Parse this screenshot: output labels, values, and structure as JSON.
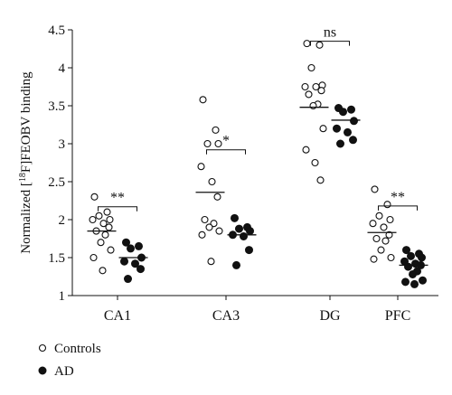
{
  "chart_data": {
    "type": "scatter",
    "ylabel": "Normalized [<sup>18</sup>F]FEOBV binding",
    "ylabel_parts": {
      "prefix": "Normalized [",
      "sup": "18",
      "suffix": "F]FEOBV binding"
    },
    "ylim": [
      1,
      4.5
    ],
    "yticks": [
      "1",
      "1.5",
      "2",
      "2.5",
      "3",
      "3.5",
      "4",
      "4.5"
    ],
    "ytick_values": [
      1,
      1.5,
      2,
      2.5,
      3,
      3.5,
      4,
      4.5
    ],
    "categories": [
      "CA1",
      "CA3",
      "DG",
      "PFC"
    ],
    "legend_placement": "bottom-left",
    "series": [
      {
        "name": "Controls",
        "marker": "open-circle",
        "values": [
          [
            2.3,
            2.1,
            2.05,
            2.0,
            2.0,
            1.95,
            1.9,
            1.85,
            1.8,
            1.7,
            1.6,
            1.5,
            1.33
          ],
          [
            3.58,
            3.18,
            3.0,
            3.0,
            2.7,
            2.5,
            2.3,
            2.0,
            1.95,
            1.9,
            1.85,
            1.8,
            1.45
          ],
          [
            4.32,
            4.3,
            4.0,
            3.77,
            3.75,
            3.75,
            3.7,
            3.65,
            3.52,
            3.5,
            3.2,
            2.92,
            2.75,
            2.52
          ],
          [
            2.4,
            2.2,
            2.05,
            2.0,
            1.95,
            1.9,
            1.8,
            1.75,
            1.72,
            1.6,
            1.5,
            1.48
          ]
        ],
        "means": [
          1.85,
          2.36,
          3.48,
          1.83
        ]
      },
      {
        "name": "AD",
        "marker": "filled-circle",
        "values": [
          [
            1.7,
            1.65,
            1.62,
            1.5,
            1.45,
            1.42,
            1.35,
            1.22
          ],
          [
            2.02,
            1.9,
            1.88,
            1.85,
            1.8,
            1.78,
            1.6,
            1.4
          ],
          [
            3.47,
            3.45,
            3.42,
            3.3,
            3.2,
            3.15,
            3.05,
            3.0
          ],
          [
            1.6,
            1.55,
            1.52,
            1.5,
            1.45,
            1.42,
            1.4,
            1.38,
            1.32,
            1.28,
            1.2,
            1.18,
            1.15
          ]
        ],
        "means": [
          1.5,
          1.8,
          3.31,
          1.4
        ]
      }
    ],
    "significance": [
      {
        "category": "CA1",
        "label": "**",
        "y": 2.17
      },
      {
        "category": "CA3",
        "label": "*",
        "y": 2.92
      },
      {
        "category": "DG",
        "label": "ns",
        "y": 4.35
      },
      {
        "category": "PFC",
        "label": "**",
        "y": 2.18
      }
    ]
  },
  "colors": {
    "ink": "#111111",
    "background": "#ffffff"
  }
}
